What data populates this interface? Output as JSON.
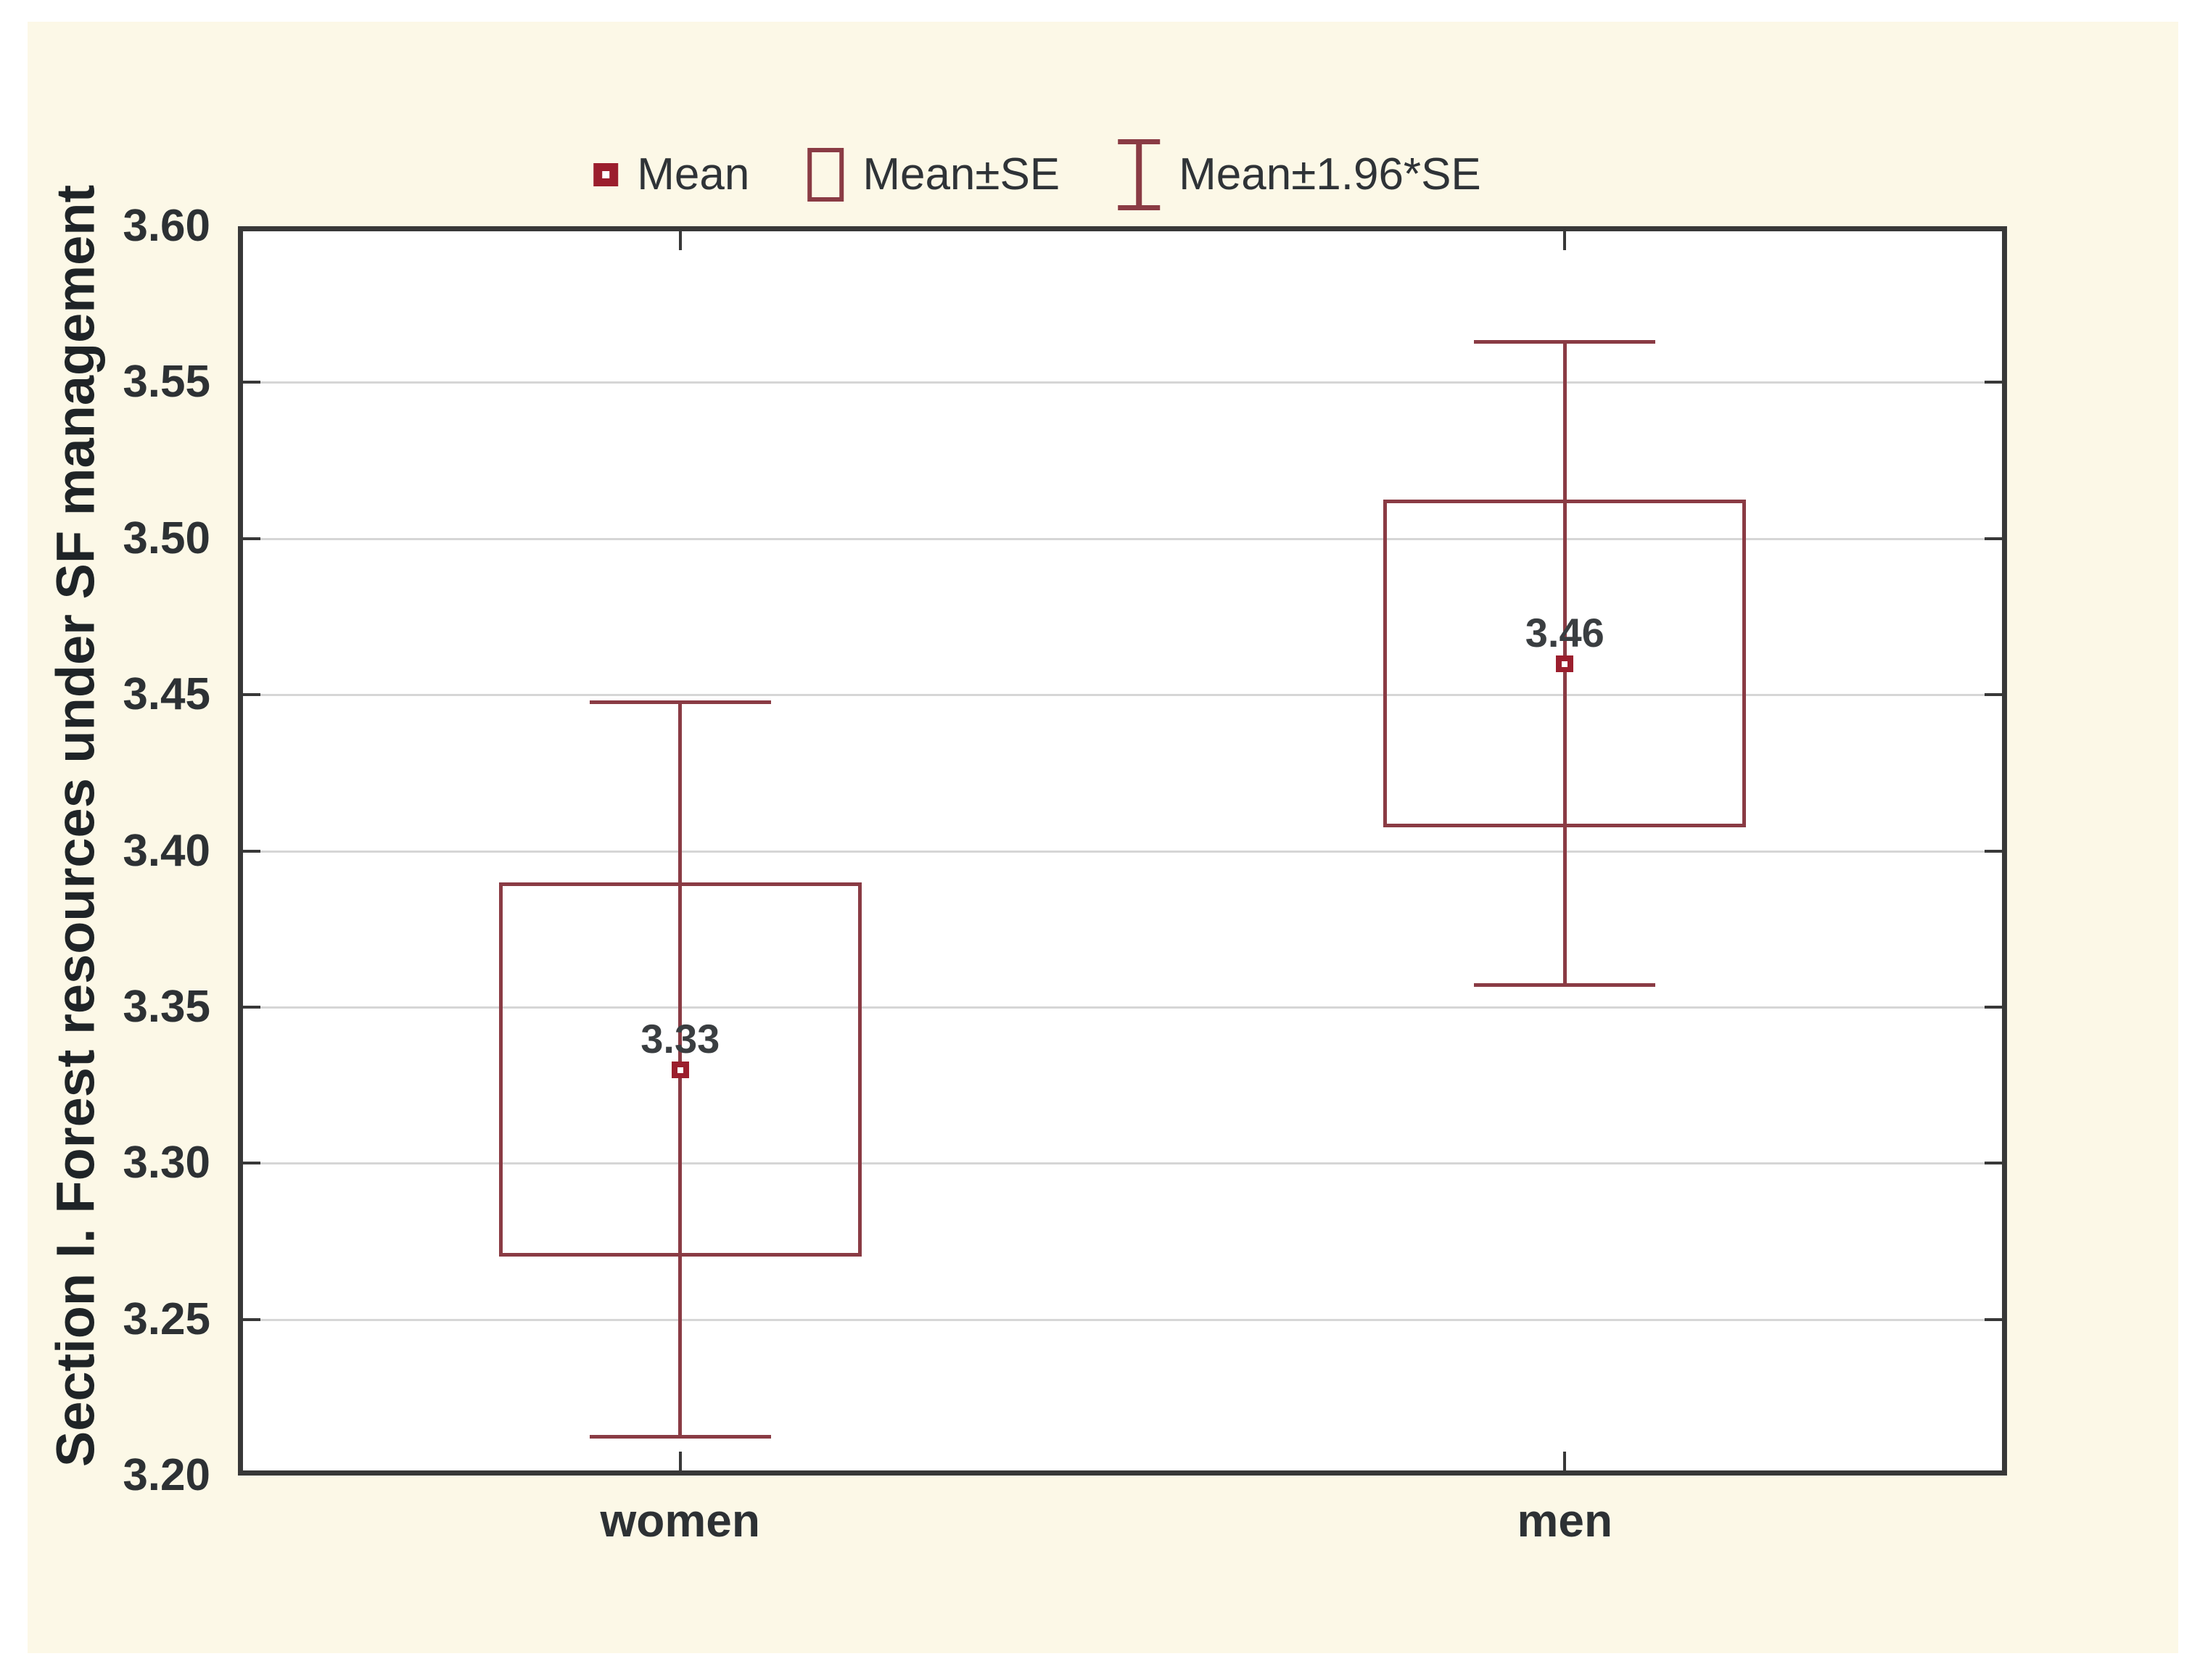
{
  "figure": {
    "background_color": "#fcf8e7",
    "outer_margin_color": "#ffffff",
    "plot_background": "#ffffff"
  },
  "legend": {
    "items": [
      {
        "icon": "mean-marker-icon",
        "label": "Mean"
      },
      {
        "icon": "mean-se-box-icon",
        "label": "Mean±SE"
      },
      {
        "icon": "mean-196se-whisker-icon",
        "label": "Mean±1.96*SE"
      }
    ]
  },
  "chart_data": {
    "type": "box",
    "subtype": "mean-se-whisker-plot",
    "title": "",
    "xlabel": "",
    "ylabel": "Section I. Forest resources under SF management",
    "categories": [
      "women",
      "men"
    ],
    "series": [
      {
        "category": "women",
        "mean": 3.33,
        "mean_label": "3.33",
        "se": 0.06,
        "box_low": 3.27,
        "box_high": 3.39,
        "whisker_low": 3.2124,
        "whisker_high": 3.4476
      },
      {
        "category": "men",
        "mean": 3.46,
        "mean_label": "3.46",
        "se": 0.0525,
        "box_low": 3.4075,
        "box_high": 3.5125,
        "whisker_low": 3.3571,
        "whisker_high": 3.5629
      }
    ],
    "box_rule": "Mean±SE",
    "whisker_rule": "Mean±1.96*SE",
    "ylim": [
      3.2,
      3.6
    ],
    "ytick_step": 0.05,
    "ytick_labels": [
      "3.60",
      "3.55",
      "3.50",
      "3.45",
      "3.40",
      "3.35",
      "3.30",
      "3.25",
      "3.20"
    ],
    "grid": "horizontal",
    "legend_position": "top-center",
    "colors": {
      "box_line": "#8a3b44",
      "marker_fill": "#9b1e2d",
      "marker_center": "#ffffff",
      "frame": "#383838",
      "gridline": "#d6d6d6",
      "tick_text": "#2d3134",
      "axis_title_text": "#1f2427",
      "legend_text": "#2f3337",
      "mean_label_text": "#3a3e41"
    }
  }
}
